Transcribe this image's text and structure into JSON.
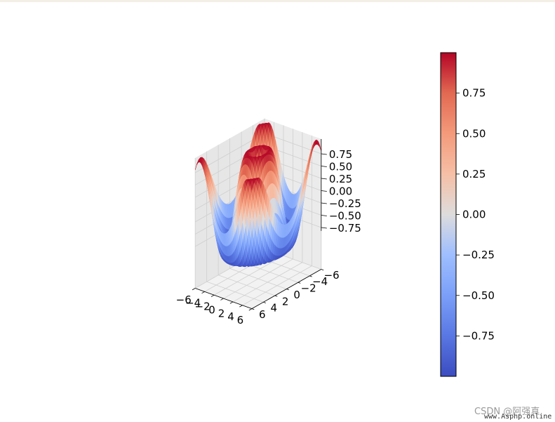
{
  "chart_data": {
    "type": "surface3d",
    "function": "z = sin(sqrt(x^2 + y^2))",
    "colormap": "coolwarm",
    "x_range": [
      -6,
      6
    ],
    "y_range": [
      -6,
      6
    ],
    "z_range": [
      -1,
      1
    ],
    "x_ticks": [
      "−6",
      "−4",
      "−2",
      "0",
      "2",
      "4",
      "6"
    ],
    "y_ticks": [
      "−6",
      "−4",
      "−2",
      "0",
      "2",
      "4",
      "6"
    ],
    "z_ticks": [
      "0.75",
      "0.50",
      "0.25",
      "0.00",
      "−0.25",
      "−0.50",
      "−0.75"
    ],
    "colorbar": {
      "range": [
        -1,
        1
      ],
      "ticks": [
        "0.75",
        "0.50",
        "0.25",
        "0.00",
        "−0.25",
        "−0.50",
        "−0.75"
      ]
    },
    "grid": true,
    "grid_resolution": 40
  },
  "watermark": {
    "line1": "CSDN @阿强真",
    "line2": "www.Asphp.online"
  }
}
